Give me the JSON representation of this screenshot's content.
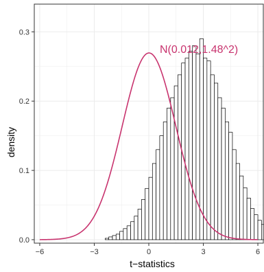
{
  "chart_data": {
    "type": "bar",
    "title": "",
    "xlabel": "t−statistics",
    "ylabel": "density",
    "xlim": [
      -6.3,
      6.3
    ],
    "ylim": [
      -0.005,
      0.34
    ],
    "x_ticks": [
      -6,
      -3,
      0,
      3,
      6
    ],
    "x_tick_labels": [
      "−6",
      "−3",
      "0",
      "3",
      "6"
    ],
    "y_ticks": [
      0.0,
      0.1,
      0.2,
      0.3
    ],
    "y_tick_labels": [
      "0.0",
      "0.1",
      "0.2",
      "0.3"
    ],
    "grid": true,
    "bin_width": 0.2,
    "bin_start": -6.0,
    "histogram_values": [
      0.0,
      0.0,
      0.0,
      0.0,
      0.0,
      0.0,
      0.0,
      0.0,
      0.0,
      0.0,
      0.0,
      0.0,
      0.0,
      0.0,
      0.0,
      0.0,
      0.0,
      0.0,
      0.002,
      0.004,
      0.006,
      0.008,
      0.012,
      0.016,
      0.02,
      0.026,
      0.034,
      0.044,
      0.058,
      0.074,
      0.09,
      0.11,
      0.13,
      0.15,
      0.17,
      0.19,
      0.205,
      0.222,
      0.238,
      0.255,
      0.262,
      0.272,
      0.28,
      0.268,
      0.29,
      0.262,
      0.258,
      0.238,
      0.226,
      0.205,
      0.19,
      0.17,
      0.155,
      0.13,
      0.11,
      0.092,
      0.075,
      0.06,
      0.045,
      0.036,
      0.028,
      0.022,
      0.016,
      0.012,
      0.008,
      0.006,
      0.004,
      0.003,
      0.002,
      0.001
    ],
    "curve": {
      "label": "N(0.012,1.48^2)",
      "mean": 0.012,
      "sd": 1.48,
      "color": "#c8336e"
    },
    "bar_fill": "#ffffff",
    "bar_stroke": "#000000",
    "panel_border": "#333333",
    "grid_color": "#ebebeb"
  }
}
